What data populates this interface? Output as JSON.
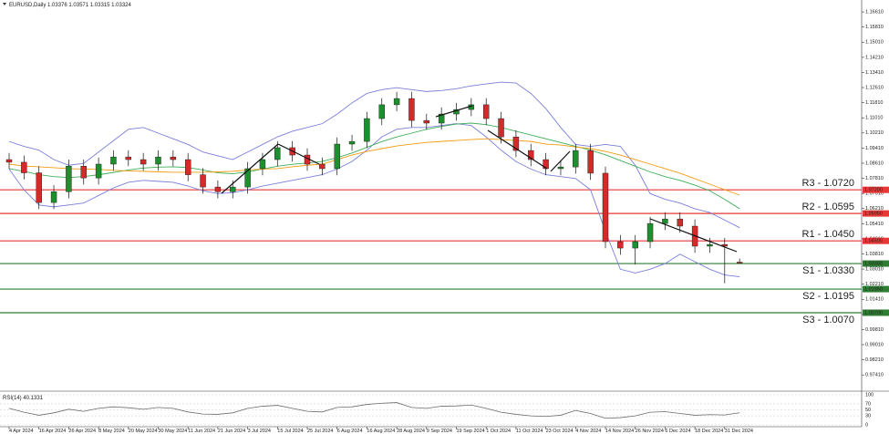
{
  "chart_data": [
    {
      "type": "candlestick",
      "title": "EURUSD,Daily",
      "categories": [
        "4 Apr 2024",
        null,
        "16 Apr 2024",
        null,
        "26 Apr 2024",
        null,
        "8 May 2024",
        null,
        "20 May 2024",
        null,
        "30 May 2024",
        null,
        "11 Jun 2024",
        null,
        "21 Jun 2024",
        null,
        "3 Jul 2024",
        null,
        "15 Jul 2024",
        null,
        "25 Jul 2024",
        null,
        "6 Aug 2024",
        null,
        "16 Aug 2024",
        null,
        "28 Aug 2024",
        null,
        "9 Sep 2024",
        null,
        "19 Sep 2024",
        null,
        "1 Oct 2024",
        null,
        "11 Oct 2024",
        null,
        "23 Oct 2024",
        null,
        "4 Nov 2024",
        null,
        "14 Nov 2024",
        null,
        "26 Nov 2024",
        null,
        "6 Dec 2024",
        null,
        "18 Dec 2024",
        null,
        "31 Dec 2024",
        null
      ],
      "ohlc": [
        [
          1.088,
          1.0915,
          1.0831,
          1.0866
        ],
        [
          1.0866,
          1.0901,
          1.0775,
          1.081
        ],
        [
          1.081,
          1.0845,
          1.0618,
          1.0653
        ],
        [
          1.0653,
          1.0745,
          1.0618,
          1.071
        ],
        [
          1.071,
          1.088,
          1.0675,
          1.0845
        ],
        [
          1.0845,
          1.088,
          1.0748,
          1.0783
        ],
        [
          1.0783,
          1.0891,
          1.0748,
          1.0856
        ],
        [
          1.0856,
          1.0929,
          1.0821,
          1.0894
        ],
        [
          1.0894,
          1.0929,
          1.0845,
          1.088
        ],
        [
          1.088,
          1.0915,
          1.0821,
          1.0856
        ],
        [
          1.0856,
          1.0929,
          1.0821,
          1.0894
        ],
        [
          1.0894,
          1.0929,
          1.0845,
          1.088
        ],
        [
          1.088,
          1.0915,
          1.0765,
          1.08
        ],
        [
          1.08,
          1.0835,
          1.07,
          1.0735
        ],
        [
          1.0735,
          1.077,
          1.0675,
          1.071
        ],
        [
          1.071,
          1.077,
          1.0675,
          1.0735
        ],
        [
          1.0735,
          1.0867,
          1.07,
          1.0832
        ],
        [
          1.0832,
          1.0915,
          1.0797,
          1.088
        ],
        [
          1.088,
          1.0978,
          1.0845,
          1.0943
        ],
        [
          1.0943,
          1.0978,
          1.0869,
          1.0904
        ],
        [
          1.0904,
          1.0939,
          1.0821,
          1.0856
        ],
        [
          1.0856,
          1.0891,
          1.0797,
          1.0832
        ],
        [
          1.0832,
          1.0997,
          1.0797,
          1.0962
        ],
        [
          1.0962,
          1.1011,
          1.0927,
          1.0976
        ],
        [
          1.0976,
          1.1132,
          1.0941,
          1.1097
        ],
        [
          1.1097,
          1.1205,
          1.1062,
          1.117
        ],
        [
          1.117,
          1.1238,
          1.1135,
          1.1203
        ],
        [
          1.1203,
          1.1238,
          1.1052,
          1.1087
        ],
        [
          1.1087,
          1.1122,
          1.1038,
          1.1073
        ],
        [
          1.1073,
          1.1156,
          1.1038,
          1.1121
        ],
        [
          1.1121,
          1.118,
          1.1086,
          1.1145
        ],
        [
          1.1145,
          1.1205,
          1.111,
          1.117
        ],
        [
          1.117,
          1.1205,
          1.1062,
          1.1097
        ],
        [
          1.1097,
          1.1132,
          1.0965,
          1.1
        ],
        [
          1.1,
          1.1035,
          1.0893,
          1.0928
        ],
        [
          1.0928,
          1.0963,
          1.0845,
          1.088
        ],
        [
          1.088,
          1.0915,
          1.0797,
          1.0832
        ],
        [
          1.0832,
          1.0876,
          1.0797,
          1.0841
        ],
        [
          1.0841,
          1.0963,
          1.0806,
          1.0928
        ],
        [
          1.0928,
          1.0963,
          1.0773,
          1.0808
        ],
        [
          1.0808,
          1.0843,
          1.0411,
          1.0446
        ],
        [
          1.0446,
          1.0481,
          1.0377,
          1.0412
        ],
        [
          1.0412,
          1.0481,
          1.0325,
          1.0446
        ],
        [
          1.0446,
          1.0577,
          1.0411,
          1.0542
        ],
        [
          1.0542,
          1.0601,
          1.0507,
          1.0566
        ],
        [
          1.0566,
          1.0601,
          1.0493,
          1.0528
        ],
        [
          1.0528,
          1.0563,
          1.0387,
          1.0422
        ],
        [
          1.0422,
          1.0466,
          1.0387,
          1.0431
        ],
        [
          1.0431,
          1.0466,
          1.0226,
          1.0422
        ],
        [
          1.03376,
          1.03571,
          1.03315,
          1.03324
        ]
      ],
      "up_color": "#1e8f2e",
      "down_color": "#d42a2a",
      "series": [
        {
          "color": "#7b7fd9",
          "values": [
            1.0976,
            1.095,
            1.093,
            1.088,
            1.085,
            1.086,
            1.092,
            1.098,
            1.104,
            1.105,
            1.102,
            1.099,
            1.096,
            1.092,
            1.09,
            1.088,
            1.092,
            1.096,
            1.1,
            1.103,
            1.105,
            1.107,
            1.112,
            1.118,
            1.123,
            1.125,
            1.126,
            1.125,
            1.124,
            1.1245,
            1.1255,
            1.127,
            1.128,
            1.129,
            1.1285,
            1.123,
            1.115,
            1.105,
            1.096,
            1.095,
            1.096,
            1.095,
            1.085,
            1.07,
            1.067,
            1.065,
            1.062,
            1.06,
            1.056,
            1.052
          ]
        },
        {
          "color": "#7b7fd9",
          "values": [
            1.083,
            1.072,
            1.064,
            1.063,
            1.064,
            1.065,
            1.069,
            1.073,
            1.076,
            1.077,
            1.0765,
            1.076,
            1.074,
            1.0715,
            1.07,
            1.0705,
            1.072,
            1.074,
            1.0755,
            1.077,
            1.0785,
            1.08,
            1.083,
            1.087,
            1.093,
            1.1,
            1.104,
            1.105,
            1.105,
            1.106,
            1.107,
            1.106,
            1.1,
            1.093,
            1.087,
            1.083,
            1.08,
            1.079,
            1.078,
            1.072,
            1.05,
            1.03,
            1.028,
            1.03,
            1.033,
            1.038,
            1.034,
            1.03,
            1.027,
            1.026
          ]
        },
        {
          "color": "#3fae5a",
          "values": [
            1.0832,
            1.0818,
            1.08,
            1.079,
            1.0785,
            1.079,
            1.08,
            1.0812,
            1.0825,
            1.0835,
            1.084,
            1.0842,
            1.0838,
            1.0825,
            1.081,
            1.0805,
            1.0815,
            1.083,
            1.0845,
            1.0855,
            1.0862,
            1.087,
            1.089,
            1.0915,
            1.0945,
            1.0975,
            1.1,
            1.102,
            1.104,
            1.1055,
            1.1068,
            1.1073,
            1.1065,
            1.105,
            1.103,
            1.101,
            1.099,
            1.097,
            1.095,
            1.093,
            1.0905,
            1.0875,
            1.0845,
            1.0815,
            1.079,
            1.077,
            1.0745,
            1.0715,
            1.067,
            1.062
          ]
        },
        {
          "color": "#f39c12",
          "values": [
            1.0856,
            1.0846,
            1.0842,
            1.0837,
            1.0832,
            1.083,
            1.0828,
            1.0823,
            1.082,
            1.0818,
            1.0815,
            1.0813,
            1.0813,
            1.0813,
            1.0815,
            1.0818,
            1.0825,
            1.083,
            1.0832,
            1.0842,
            1.085,
            1.0856,
            1.088,
            1.0904,
            1.0923,
            1.0938,
            1.0952,
            1.0962,
            1.0971,
            1.0976,
            1.0981,
            1.0986,
            1.099,
            1.0986,
            1.0981,
            1.0976,
            1.0962,
            1.0957,
            1.0947,
            1.0938,
            1.0923,
            1.0904,
            1.088,
            1.0856,
            1.0832,
            1.0808,
            1.0779,
            1.075,
            1.0721,
            1.0692
          ]
        }
      ],
      "levels": [
        {
          "label": "R3 - 1.0720",
          "value": 1.072,
          "axis_label": "1.07200",
          "color": "#e53935"
        },
        {
          "label": "R2 - 1.0595",
          "value": 1.0595,
          "axis_label": "1.05950",
          "color": "#e53935"
        },
        {
          "label": "R1 - 1.0450",
          "value": 1.045,
          "axis_label": "1.04500",
          "color": "#e53935"
        },
        {
          "label": "S1 - 1.0330",
          "value": 1.033,
          "axis_label": "1.03300",
          "color": "#2e7d32"
        },
        {
          "label": "S2 - 1.0195",
          "value": 1.0195,
          "axis_label": "1.01950",
          "color": "#2e7d32"
        },
        {
          "label": "S3 - 1.0070",
          "value": 1.007,
          "axis_label": "1.00700",
          "color": "#2e7d32"
        }
      ],
      "ylim": [
        0.966,
        1.17
      ],
      "yticks": [
        {
          "value": 0.9741,
          "label": "0.97410"
        },
        {
          "value": 0.9821,
          "label": "0.98210"
        },
        {
          "value": 0.9901,
          "label": "0.99010"
        },
        {
          "value": 0.9981,
          "label": "0.99810"
        },
        {
          "value": 1.0061,
          "label": "1.00610"
        },
        {
          "value": 1.0141,
          "label": "1.01410"
        },
        {
          "value": 1.0221,
          "label": "1.02210"
        },
        {
          "value": 1.0301,
          "label": "1.03010"
        },
        {
          "value": 1.0381,
          "label": "1.03810"
        },
        {
          "value": 1.0461,
          "label": "1.04610"
        },
        {
          "value": 1.0541,
          "label": "1.05410"
        },
        {
          "value": 1.0621,
          "label": "1.06210"
        },
        {
          "value": 1.0701,
          "label": "1.07010"
        },
        {
          "value": 1.0781,
          "label": "1.07810"
        },
        {
          "value": 1.0861,
          "label": "1.08610"
        },
        {
          "value": 1.0941,
          "label": "1.09410"
        },
        {
          "value": 1.1021,
          "label": "1.10210"
        },
        {
          "value": 1.1101,
          "label": "1.11010"
        },
        {
          "value": 1.1181,
          "label": "1.11810"
        },
        {
          "value": 1.1261,
          "label": "1.12610"
        },
        {
          "value": 1.1341,
          "label": "1.13410"
        },
        {
          "value": 1.1421,
          "label": "1.14210"
        },
        {
          "value": 1.1501,
          "label": "1.15010"
        },
        {
          "value": 1.1581,
          "label": "1.15810"
        },
        {
          "value": 1.1661,
          "label": "1.16610"
        }
      ]
    },
    {
      "type": "line",
      "title": "RSI(14)",
      "color": "#6b6b6b",
      "values": [
        55,
        42,
        32,
        40,
        52,
        45,
        55,
        60,
        57,
        52,
        58,
        55,
        43,
        36,
        35,
        40,
        55,
        62,
        65,
        55,
        45,
        43,
        58,
        60,
        68,
        72,
        74,
        58,
        55,
        62,
        63,
        66,
        55,
        42,
        35,
        30,
        28,
        32,
        48,
        38,
        22,
        24,
        30,
        42,
        44,
        38,
        32,
        34,
        33,
        40.1331
      ],
      "ylim": [
        0,
        100
      ],
      "yticks": [
        0,
        30,
        50,
        70,
        100
      ]
    }
  ]
}
